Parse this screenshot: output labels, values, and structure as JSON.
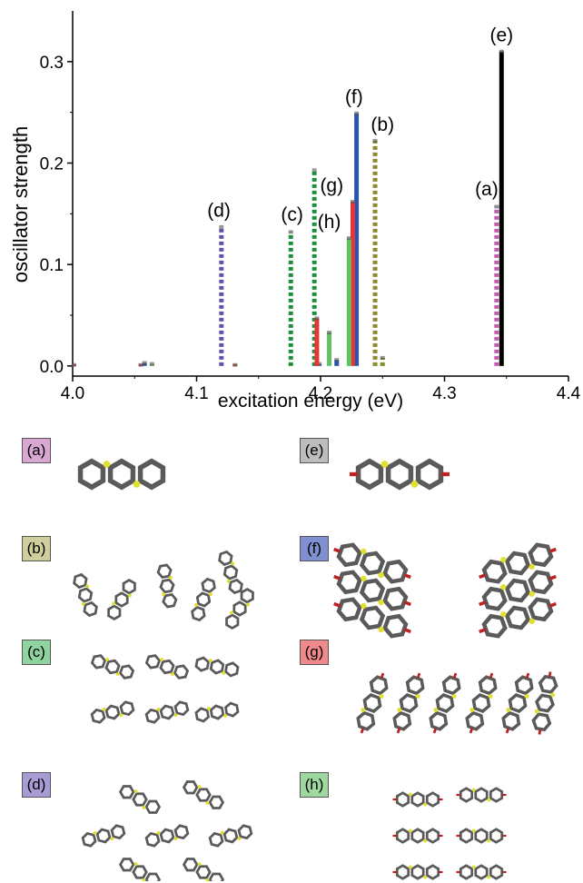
{
  "chart_data": {
    "type": "bar",
    "xlabel": "excitation energy (eV)",
    "ylabel": "oscillator strength",
    "xlim": [
      4.0,
      4.4
    ],
    "ylim": [
      -0.01,
      0.35
    ],
    "xticks": [
      "4.0",
      "4.1",
      "4.2",
      "4.3",
      "4.4"
    ],
    "xtick_values": [
      4.0,
      4.1,
      4.2,
      4.3,
      4.4
    ],
    "yticks": [
      "0.0",
      "0.1",
      "0.2",
      "0.3"
    ],
    "ytick_values": [
      0.0,
      0.1,
      0.2,
      0.3
    ],
    "series": [
      {
        "name": "(a)",
        "color": "#c25bb0",
        "style": "dotted",
        "points": [
          [
            4.342,
            0.157
          ]
        ]
      },
      {
        "name": "(b)",
        "color": "#8a8a2e",
        "style": "dotted",
        "points": [
          [
            4.244,
            0.222
          ],
          [
            4.25,
            0.008
          ]
        ]
      },
      {
        "name": "(c)",
        "color": "#1f8f3c",
        "style": "dotted",
        "points": [
          [
            4.176,
            0.132
          ],
          [
            4.195,
            0.193
          ]
        ]
      },
      {
        "name": "(d)",
        "color": "#5a55b0",
        "style": "dotted",
        "points": [
          [
            4.12,
            0.137
          ]
        ]
      },
      {
        "name": "(e)",
        "color": "#000000",
        "style": "solid",
        "points": [
          [
            4.346,
            0.31
          ]
        ]
      },
      {
        "name": "(f)",
        "color": "#2b55b0",
        "style": "solid",
        "points": [
          [
            4.229,
            0.249
          ],
          [
            4.213,
            0.006
          ],
          [
            4.058,
            0.003
          ],
          [
            4.199,
            0.002
          ]
        ]
      },
      {
        "name": "(g)",
        "color": "#e53535",
        "style": "solid",
        "points": [
          [
            4.226,
            0.162
          ],
          [
            4.197,
            0.047
          ],
          [
            4.001,
            0.001
          ],
          [
            4.131,
            0.001
          ],
          [
            4.055,
            0.001
          ]
        ]
      },
      {
        "name": "(h)",
        "color": "#5fc25f",
        "style": "solid",
        "points": [
          [
            4.223,
            0.126
          ],
          [
            4.207,
            0.033
          ],
          [
            4.064,
            0.002
          ]
        ]
      }
    ],
    "annotations": [
      {
        "text": "(a)",
        "x": 4.334,
        "y": 0.168
      },
      {
        "text": "(b)",
        "x": 4.25,
        "y": 0.232
      },
      {
        "text": "(c)",
        "x": 4.177,
        "y": 0.143
      },
      {
        "text": "(d)",
        "x": 4.118,
        "y": 0.147
      },
      {
        "text": "(e)",
        "x": 4.346,
        "y": 0.32
      },
      {
        "text": "(f)",
        "x": 4.227,
        "y": 0.259
      },
      {
        "text": "(g)",
        "x": 4.209,
        "y": 0.172
      },
      {
        "text": "(h)",
        "x": 4.207,
        "y": 0.136
      }
    ]
  },
  "panels": [
    {
      "label": "(a)",
      "color": "#d8a8d2",
      "icon": "single-molecule-icon"
    },
    {
      "label": "(e)",
      "color": "#bdbdbd",
      "icon": "substituted-molecule-icon"
    },
    {
      "label": "(b)",
      "color": "#cfcf9e",
      "icon": "molecule-cluster-icon"
    },
    {
      "label": "(f)",
      "color": "#7f8fcf",
      "icon": "molecule-stack-icon"
    },
    {
      "label": "(c)",
      "color": "#8fd3a0",
      "icon": "molecule-cluster-icon"
    },
    {
      "label": "(g)",
      "color": "#f08a8a",
      "icon": "molecule-row-icon"
    },
    {
      "label": "(d)",
      "color": "#a89bd6",
      "icon": "molecule-cluster-icon"
    },
    {
      "label": "(h)",
      "color": "#9fd89f",
      "icon": "molecule-pile-icon"
    }
  ]
}
